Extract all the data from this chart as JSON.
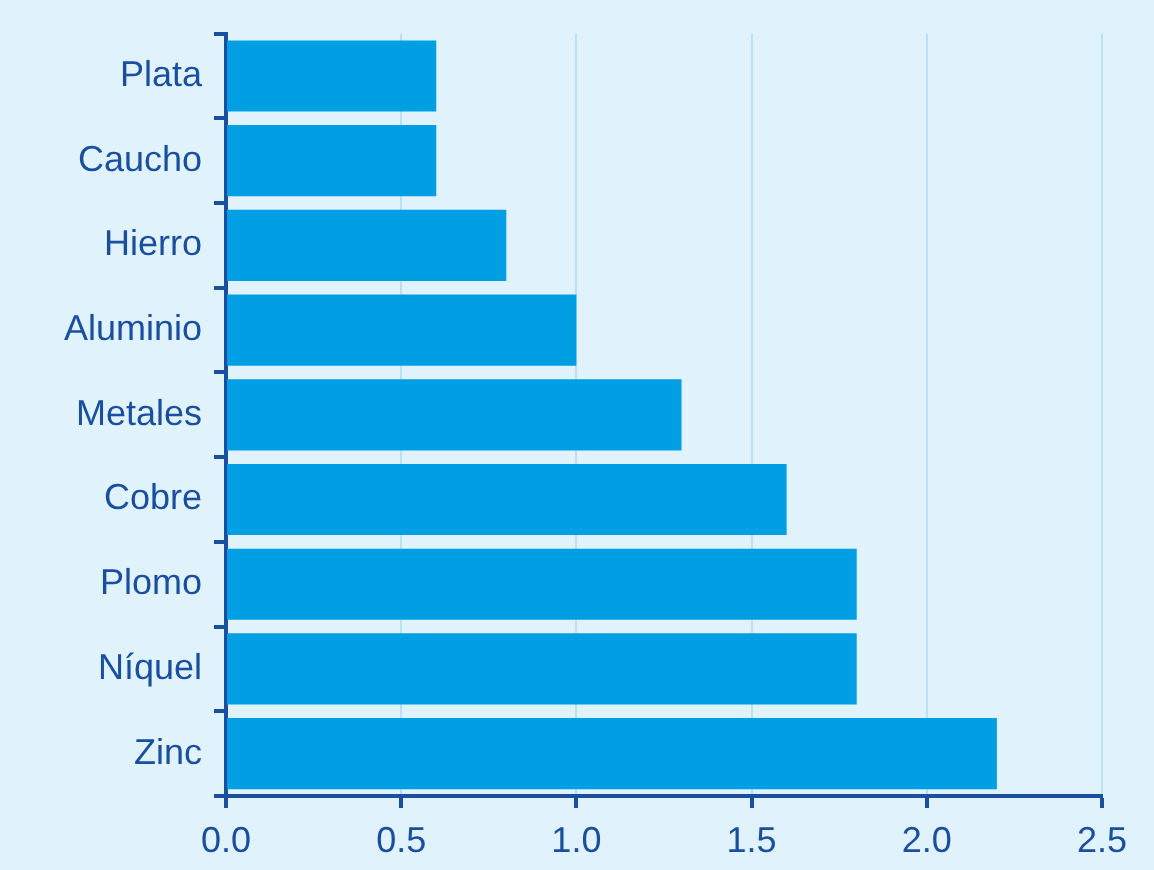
{
  "chart_data": {
    "type": "bar",
    "orientation": "horizontal",
    "categories": [
      "Plata",
      "Caucho",
      "Hierro",
      "Aluminio",
      "Metales",
      "Cobre",
      "Plomo",
      "Níquel",
      "Zinc"
    ],
    "values": [
      0.6,
      0.6,
      0.8,
      1.0,
      1.3,
      1.6,
      1.8,
      1.8,
      2.2
    ],
    "color": "#009fe3",
    "xlim": [
      0,
      2.5
    ],
    "xticks": [
      {
        "value": 0,
        "label": "0.0"
      },
      {
        "value": 0.5,
        "label": "0.5"
      },
      {
        "value": 1,
        "label": "1.0"
      },
      {
        "value": 1.5,
        "label": "1.5"
      },
      {
        "value": 2,
        "label": "2.0"
      },
      {
        "value": 2.5,
        "label": "2.5"
      }
    ],
    "grid": "x",
    "legend": false
  }
}
